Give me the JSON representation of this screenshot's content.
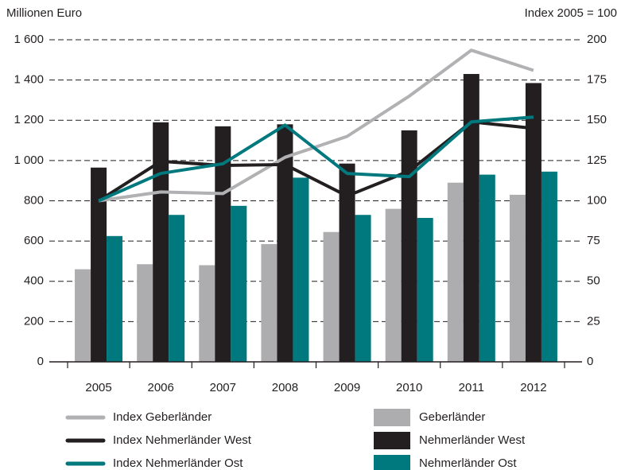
{
  "chart_data": {
    "type": "bar",
    "y_label": "Millionen Euro",
    "y2_label": "Index 2005 = 100",
    "categories": [
      "2005",
      "2006",
      "2007",
      "2008",
      "2009",
      "2010",
      "2011",
      "2012"
    ],
    "ylim": [
      0,
      1600
    ],
    "yticks": [
      0,
      200,
      400,
      600,
      800,
      {
        "value": 1000,
        "label": "1 000"
      },
      {
        "value": 1200,
        "label": "1 200"
      },
      {
        "value": 1400,
        "label": "1 400"
      },
      {
        "value": 1600,
        "label": "1 600"
      }
    ],
    "y2lim": [
      0,
      200
    ],
    "y2ticks": [
      0,
      25,
      50,
      75,
      100,
      125,
      150,
      175,
      200
    ],
    "grid": true,
    "series": [
      {
        "name": "Index Geberländer",
        "type": "line",
        "axis": "y2",
        "color": "#b1b1b4",
        "values": [
          100,
          105.5,
          104.5,
          127,
          140,
          165,
          193.5,
          181
        ]
      },
      {
        "name": "Index Nehmerländer West",
        "type": "line",
        "axis": "y2",
        "color": "#231f20",
        "values": [
          100,
          124.5,
          122,
          122.5,
          103,
          118.5,
          149,
          145
        ]
      },
      {
        "name": "Index Nehmerländer Ost",
        "type": "line",
        "axis": "y2",
        "color": "#00797e",
        "values": [
          100,
          117,
          123,
          147,
          117,
          115,
          149,
          152
        ]
      },
      {
        "name": "Geberländer",
        "type": "bar",
        "color": "#adadb0",
        "values": [
          460,
          485,
          480,
          585,
          645,
          760,
          890,
          830
        ]
      },
      {
        "name": "Nehmerländer West",
        "type": "bar",
        "color": "#231f20",
        "values": [
          965,
          1190,
          1170,
          1180,
          985,
          1150,
          1430,
          1385
        ]
      },
      {
        "name": "Nehmerländer Ost",
        "type": "bar",
        "color": "#00797e",
        "values": [
          625,
          730,
          775,
          915,
          730,
          715,
          930,
          945
        ]
      }
    ]
  }
}
